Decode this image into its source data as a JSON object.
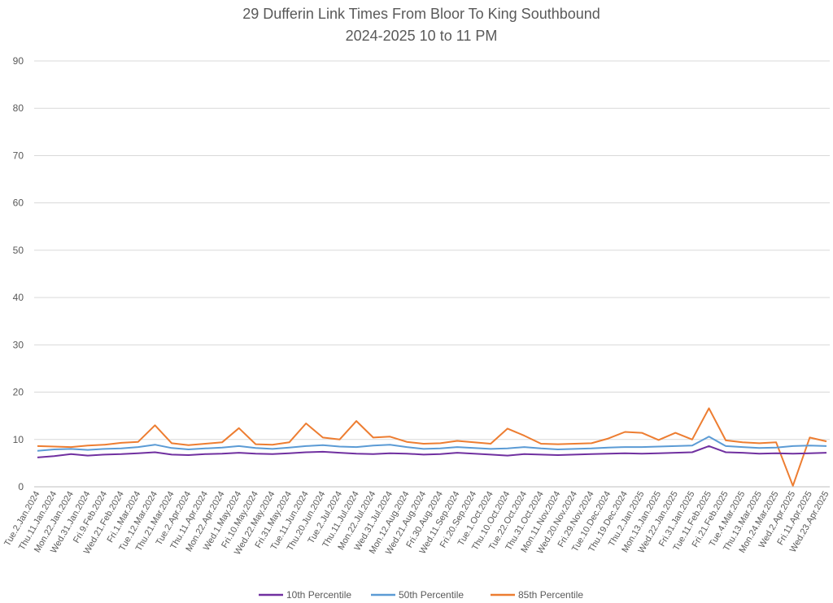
{
  "chart_data": {
    "type": "line",
    "title": "29 Dufferin Link Times From Bloor To King Southbound",
    "subtitle": "2024-2025 10 to 11 PM",
    "xlabel": "",
    "ylabel": "",
    "ylim": [
      0,
      90
    ],
    "yticks": [
      0,
      10,
      20,
      30,
      40,
      50,
      60,
      70,
      80,
      90
    ],
    "grid": true,
    "legend": "bottom",
    "categories": [
      "Tue.2.Jan.2024",
      "Thu.11.Jan.2024",
      "Mon.22.Jan.2024",
      "Wed.31.Jan.2024",
      "Fri.9.Feb.2024",
      "Wed.21.Feb.2024",
      "Fri.1.Mar.2024",
      "Tue.12.Mar.2024",
      "Thu.21.Mar.2024",
      "Tue.2.Apr.2024",
      "Thu.11.Apr.2024",
      "Mon.22.Apr.2024",
      "Wed.1.May.2024",
      "Fri.10.May.2024",
      "Wed.22.May.2024",
      "Fri.31.May.2024",
      "Tue.11.Jun.2024",
      "Thu.20.Jun.2024",
      "Tue.2.Jul.2024",
      "Thu.11.Jul.2024",
      "Mon.22.Jul.2024",
      "Wed.31.Jul.2024",
      "Mon.12.Aug.2024",
      "Wed.21.Aug.2024",
      "Fri.30.Aug.2024",
      "Wed.11.Sep.2024",
      "Fri.20.Sep.2024",
      "Tue.1.Oct.2024",
      "Thu.10.Oct.2024",
      "Tue.22.Oct.2024",
      "Thu.31.Oct.2024",
      "Mon.11.Nov.2024",
      "Wed.20.Nov.2024",
      "Fri.29.Nov.2024",
      "Tue.10.Dec.2024",
      "Thu.19.Dec.2024",
      "Thu.2.Jan.2025",
      "Mon.13.Jan.2025",
      "Wed.22.Jan.2025",
      "Fri.31.Jan.2025",
      "Tue.11.Feb.2025",
      "Fri.21.Feb.2025",
      "Tue.4.Mar.2025",
      "Thu.13.Mar.2025",
      "Mon.24.Mar.2025",
      "Wed.2.Apr.2025",
      "Fri.11.Apr.2025",
      "Wed.23.Apr.2025"
    ],
    "series": [
      {
        "name": "10th Percentile",
        "color": "#7030a0",
        "values": [
          6.2,
          6.5,
          6.9,
          6.6,
          6.8,
          6.9,
          7.1,
          7.3,
          6.8,
          6.7,
          6.9,
          7.0,
          7.2,
          7.0,
          6.9,
          7.1,
          7.3,
          7.4,
          7.2,
          7.0,
          6.9,
          7.1,
          7.0,
          6.8,
          6.9,
          7.2,
          7.0,
          6.8,
          6.6,
          6.9,
          6.8,
          6.7,
          6.8,
          6.9,
          7.0,
          7.1,
          7.0,
          7.1,
          7.2,
          7.3,
          8.6,
          7.3,
          7.2,
          7.0,
          7.1,
          7.0,
          7.1,
          7.2
        ]
      },
      {
        "name": "50th Percentile",
        "color": "#5b9bd5",
        "values": [
          7.6,
          7.9,
          8.0,
          7.8,
          8.0,
          8.1,
          8.4,
          8.9,
          8.2,
          7.9,
          8.1,
          8.3,
          8.6,
          8.2,
          8.0,
          8.3,
          8.6,
          8.8,
          8.5,
          8.4,
          8.7,
          8.9,
          8.4,
          8.0,
          8.1,
          8.4,
          8.2,
          8.0,
          8.1,
          8.4,
          8.1,
          7.9,
          8.0,
          8.1,
          8.3,
          8.4,
          8.4,
          8.5,
          8.6,
          8.7,
          10.6,
          8.6,
          8.4,
          8.2,
          8.3,
          8.6,
          8.7,
          8.6
        ]
      },
      {
        "name": "85th Percentile",
        "color": "#ed7d31",
        "values": [
          8.6,
          8.5,
          8.4,
          8.7,
          8.9,
          9.3,
          9.5,
          13.0,
          9.2,
          8.8,
          9.1,
          9.4,
          12.4,
          9.0,
          8.9,
          9.4,
          13.4,
          10.4,
          10.0,
          13.9,
          10.4,
          10.6,
          9.5,
          9.1,
          9.2,
          9.7,
          9.4,
          9.1,
          12.3,
          10.8,
          9.1,
          9.0,
          9.1,
          9.2,
          10.2,
          11.6,
          11.4,
          9.9,
          11.4,
          10.0,
          16.6,
          9.8,
          9.4,
          9.2,
          9.4,
          0.2,
          10.4,
          9.6
        ]
      }
    ]
  }
}
